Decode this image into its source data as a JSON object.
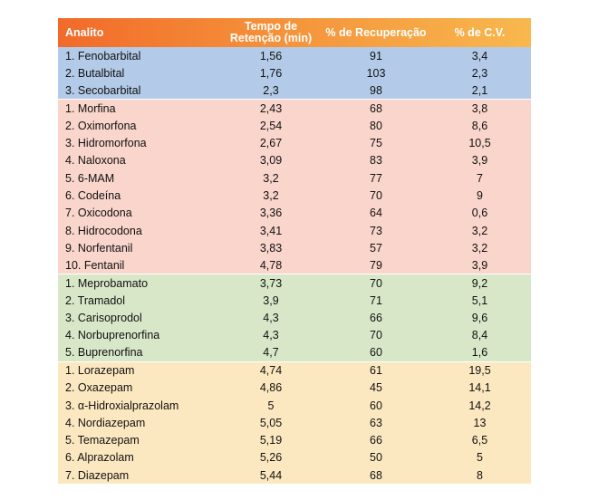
{
  "headers": [
    "Analito",
    "Tempo de Retenção (min)",
    "% de Recuperação",
    "% de C.V."
  ],
  "colors": {
    "header_gradient": [
      "#f26a2a",
      "#f8b84e"
    ],
    "barbiturates": "#b3cbe8",
    "opioids": "#f9d5cc",
    "misc": "#d8e7c8",
    "benzodiazepines": "#fce8c0"
  },
  "groups": [
    {
      "key": "barb",
      "rows": [
        [
          "1. Fenobarbital",
          "1,56",
          "91",
          "3,4"
        ],
        [
          "2. Butalbital",
          "1,76",
          "103",
          "2,3"
        ],
        [
          "3. Secobarbital",
          "2,3",
          "98",
          "2,1"
        ]
      ]
    },
    {
      "key": "opio",
      "rows": [
        [
          "1. Morfina",
          "2,43",
          "68",
          "3,8"
        ],
        [
          "2. Oximorfona",
          "2,54",
          "80",
          "8,6"
        ],
        [
          "3. Hidromorfona",
          "2,67",
          "75",
          "10,5"
        ],
        [
          "4. Naloxona",
          "3,09",
          "83",
          "3,9"
        ],
        [
          "5. 6-MAM",
          "3,2",
          "77",
          "7"
        ],
        [
          "6. Codeína",
          "3,2",
          "70",
          "9"
        ],
        [
          "7. Oxicodona",
          "3,36",
          "64",
          "0,6"
        ],
        [
          "8. Hidrocodona",
          "3,41",
          "73",
          "3,2"
        ],
        [
          "9. Norfentanil",
          "3,83",
          "57",
          "3,2"
        ],
        [
          "10. Fentanil",
          "4,78",
          "79",
          "3,9"
        ]
      ]
    },
    {
      "key": "misc",
      "rows": [
        [
          "1. Meprobamato",
          "3,73",
          "70",
          "9,2"
        ],
        [
          "2. Tramadol",
          "3,9",
          "71",
          "5,1"
        ],
        [
          "3. Carisoprodol",
          "4,3",
          "66",
          "9,6"
        ],
        [
          "4. Norbuprenorfina",
          "4,3",
          "70",
          "8,4"
        ],
        [
          "5. Buprenorfina",
          "4,7",
          "60",
          "1,6"
        ]
      ]
    },
    {
      "key": "benz",
      "rows": [
        [
          "1. Lorazepam",
          "4,74",
          "61",
          "19,5"
        ],
        [
          "2. Oxazepam",
          "4,86",
          "45",
          "14,1"
        ],
        [
          "3. α-Hidroxialprazolam",
          "5",
          "60",
          "14,2"
        ],
        [
          "4. Nordiazepam",
          "5,05",
          "63",
          "13"
        ],
        [
          "5. Temazepam",
          "5,19",
          "66",
          "6,5"
        ],
        [
          "6. Alprazolam",
          "5,26",
          "50",
          "5"
        ],
        [
          "7. Diazepam",
          "5,44",
          "68",
          "8"
        ]
      ]
    }
  ]
}
